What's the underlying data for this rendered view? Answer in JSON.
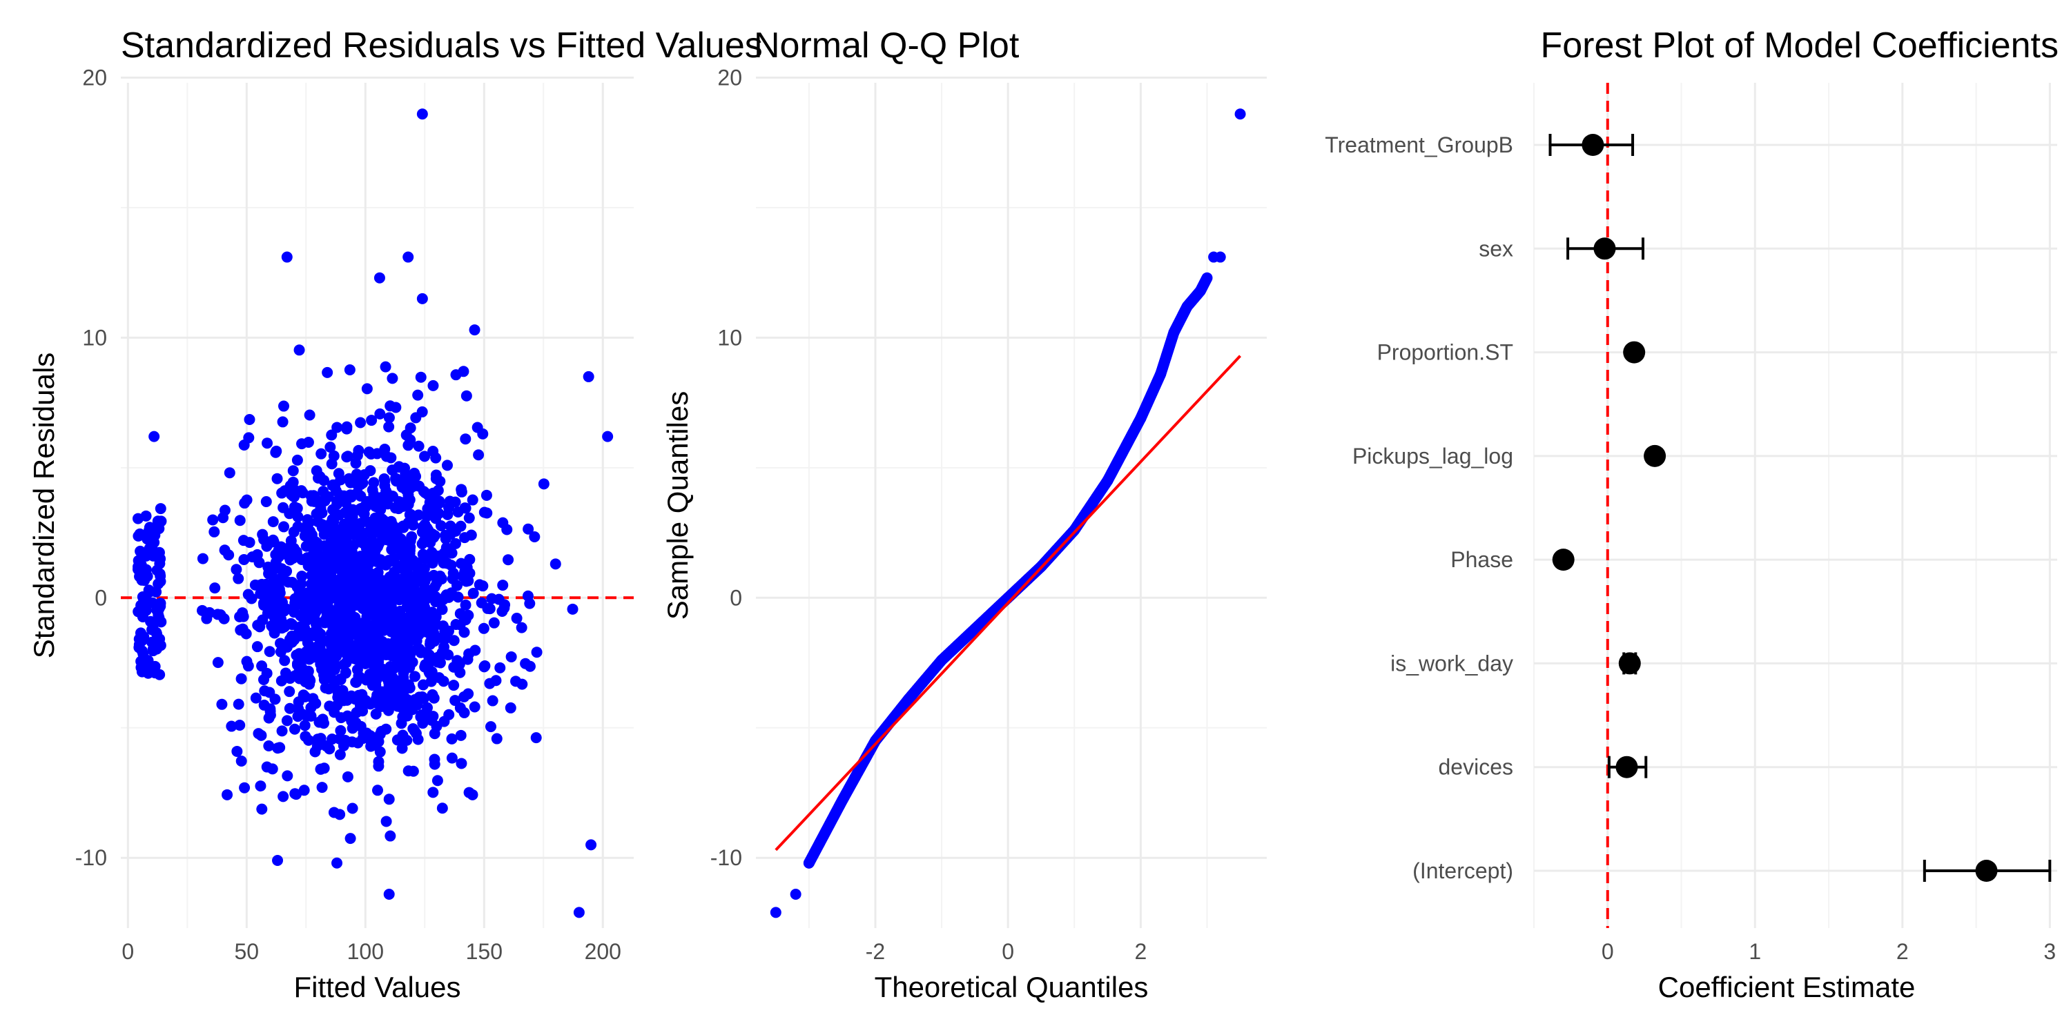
{
  "chart_data": [
    {
      "type": "scatter",
      "title": "Standardized Residuals vs Fitted Values",
      "xlabel": "Fitted Values",
      "ylabel": "Standardized Residuals",
      "xlim": [
        -3,
        213
      ],
      "ylim": [
        -12.7,
        19.8
      ],
      "xticks": [
        0,
        50,
        100,
        150,
        200
      ],
      "xtick_labels": [
        "0",
        "50",
        "100",
        "150",
        "200"
      ],
      "yticks": [
        -10,
        0,
        10,
        20
      ],
      "ytick_labels": [
        "-10",
        "0",
        "10",
        "20"
      ],
      "point_color": "#0000FF",
      "reference_line": {
        "y": 0,
        "color": "#FF0000",
        "style": "dashed"
      },
      "grid": true,
      "approx_n_points": 1700,
      "approx_distribution": {
        "main_cluster": {
          "fitted_center": 100,
          "fitted_sd": 25,
          "fitted_range": [
            30,
            200
          ],
          "residual_sd": 3.1
        },
        "low_cluster": {
          "fitted_range": [
            4,
            14
          ],
          "residual_range": [
            -3,
            3.5
          ]
        }
      },
      "notable_points": [
        {
          "x": 124,
          "y": 18.6
        },
        {
          "x": 67,
          "y": 13.1
        },
        {
          "x": 118,
          "y": 13.1
        },
        {
          "x": 106,
          "y": 12.3
        },
        {
          "x": 124,
          "y": 11.5
        },
        {
          "x": 146,
          "y": 10.3
        },
        {
          "x": 190,
          "y": -12.1
        },
        {
          "x": 110,
          "y": -11.4
        },
        {
          "x": 63,
          "y": -10.1
        },
        {
          "x": 88,
          "y": -10.2
        },
        {
          "x": 195,
          "y": -9.5
        },
        {
          "x": 11,
          "y": 6.2
        },
        {
          "x": 202,
          "y": 6.2
        },
        {
          "x": 194,
          "y": 8.5
        }
      ]
    },
    {
      "type": "scatter",
      "title": "Normal Q-Q Plot",
      "xlabel": "Theoretical Quantiles",
      "ylabel": "Sample Quantiles",
      "xlim": [
        -3.8,
        3.9
      ],
      "ylim": [
        -12.7,
        19.8
      ],
      "xticks": [
        -2,
        0,
        2
      ],
      "xtick_labels": [
        "-2",
        "0",
        "2"
      ],
      "yticks": [
        -10,
        0,
        10,
        20
      ],
      "ytick_labels": [
        "-10",
        "0",
        "10",
        "20"
      ],
      "point_color": "#0000FF",
      "reference_line": {
        "x": [
          -3.5,
          3.5
        ],
        "y": [
          -9.7,
          9.3
        ],
        "color": "#FF0000"
      },
      "curve_points": [
        {
          "x": -3.5,
          "y": -12.1
        },
        {
          "x": -3.2,
          "y": -11.4
        },
        {
          "x": -3.0,
          "y": -10.2
        },
        {
          "x": -2.5,
          "y": -7.8
        },
        {
          "x": -2.0,
          "y": -5.5
        },
        {
          "x": -1.5,
          "y": -3.9
        },
        {
          "x": -1.0,
          "y": -2.4
        },
        {
          "x": -0.5,
          "y": -1.2
        },
        {
          "x": 0.0,
          "y": 0.0
        },
        {
          "x": 0.5,
          "y": 1.2
        },
        {
          "x": 1.0,
          "y": 2.6
        },
        {
          "x": 1.5,
          "y": 4.5
        },
        {
          "x": 2.0,
          "y": 6.9
        },
        {
          "x": 2.3,
          "y": 8.6
        },
        {
          "x": 2.5,
          "y": 10.2
        },
        {
          "x": 2.7,
          "y": 11.2
        },
        {
          "x": 2.9,
          "y": 11.8
        },
        {
          "x": 3.0,
          "y": 12.3
        },
        {
          "x": 3.1,
          "y": 13.1
        },
        {
          "x": 3.2,
          "y": 13.1
        },
        {
          "x": 3.5,
          "y": 18.6
        }
      ]
    },
    {
      "type": "forest",
      "title": "Forest Plot of Model Coefficients",
      "xlabel": "Coefficient Estimate",
      "ylabel": "",
      "xlim": [
        -0.5,
        3.05
      ],
      "xticks": [
        0,
        1,
        2,
        3
      ],
      "xtick_labels": [
        "0",
        "1",
        "2",
        "3"
      ],
      "reference_line": {
        "x": 0,
        "color": "#FF0000",
        "style": "dashed"
      },
      "categories": [
        "Treatment_GroupB",
        "sex",
        "Proportion.ST",
        "Pickups_lag_log",
        "Phase",
        "is_work_day",
        "devices",
        "(Intercept)"
      ],
      "estimates": [
        -0.1,
        -0.02,
        0.18,
        0.32,
        -0.3,
        0.15,
        0.13,
        2.57
      ],
      "ci_lower": [
        -0.39,
        -0.27,
        0.18,
        0.32,
        -0.3,
        0.11,
        0.01,
        2.15
      ],
      "ci_upper": [
        0.17,
        0.24,
        0.18,
        0.32,
        -0.3,
        0.19,
        0.26,
        3.0
      ]
    }
  ]
}
